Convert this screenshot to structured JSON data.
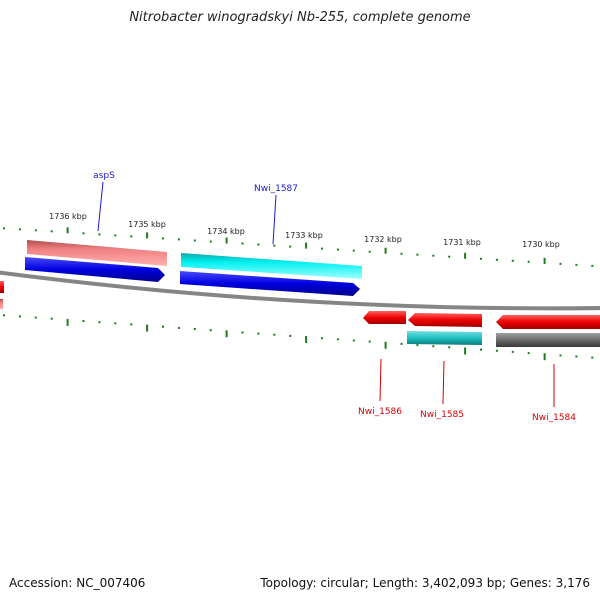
{
  "title": "Nitrobacter winogradskyi Nb-255, complete genome",
  "footer": {
    "accession": "Accession: NC_007406",
    "summary": "Topology: circular; Length: 3,402,093 bp; Genes: 3,176"
  },
  "colors": {
    "backbone": "#8a8a8a",
    "tick": "#1f7a1f",
    "forward_gene": "#0000e0",
    "forward_cog": "#f08080",
    "forward_cyan": "#00e8e8",
    "reverse_gene": "#ee0000",
    "reverse_cyan": "#20c0c0",
    "reverse_gray": "#6a6a6a",
    "label_forward": "#1a1ad6",
    "label_reverse": "#d40000"
  },
  "scale": {
    "unit": "kbp",
    "ticks": [
      {
        "label": "1736 kbp"
      },
      {
        "label": "1735 kbp"
      },
      {
        "label": "1734 kbp"
      },
      {
        "label": "1733 kbp"
      },
      {
        "label": "1732 kbp"
      },
      {
        "label": "1731 kbp"
      },
      {
        "label": "1730 kbp"
      }
    ]
  },
  "genes": {
    "forward": [
      {
        "label": "aspS",
        "color": "#0000e0",
        "cog_color": "#f08080"
      },
      {
        "label": "Nwi_1587",
        "color": "#0000e0",
        "cog_color": "#00e8e8"
      }
    ],
    "reverse": [
      {
        "label": "Nwi_1586",
        "color": "#ee0000",
        "cog_color": null
      },
      {
        "label": "Nwi_1585",
        "color": "#ee0000",
        "cog_color": "#20c0c0"
      },
      {
        "label": "Nwi_1584",
        "color": "#ee0000",
        "cog_color": "#6a6a6a"
      }
    ]
  }
}
